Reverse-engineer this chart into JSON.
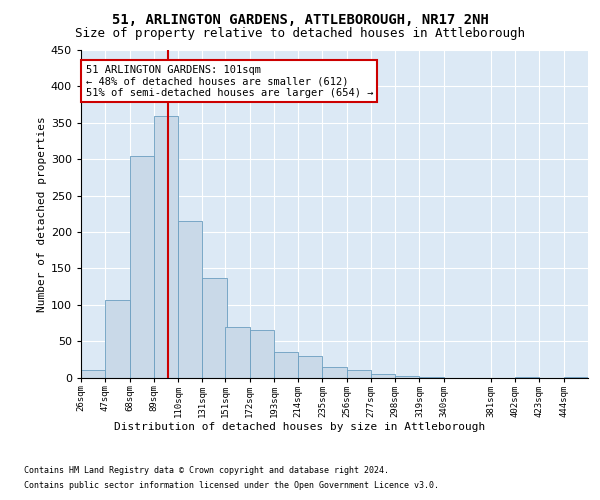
{
  "title": "51, ARLINGTON GARDENS, ATTLEBOROUGH, NR17 2NH",
  "subtitle": "Size of property relative to detached houses in Attleborough",
  "xlabel": "Distribution of detached houses by size in Attleborough",
  "ylabel": "Number of detached properties",
  "footer_line1": "Contains HM Land Registry data © Crown copyright and database right 2024.",
  "footer_line2": "Contains public sector information licensed under the Open Government Licence v3.0.",
  "annotation_title": "51 ARLINGTON GARDENS: 101sqm",
  "annotation_line2": "← 48% of detached houses are smaller (612)",
  "annotation_line3": "51% of semi-detached houses are larger (654) →",
  "subject_size": 101,
  "bins": [
    26,
    47,
    68,
    89,
    110,
    131,
    151,
    172,
    193,
    214,
    235,
    256,
    277,
    298,
    319,
    340,
    381,
    402,
    423,
    444
  ],
  "counts": [
    10,
    107,
    305,
    360,
    215,
    137,
    70,
    65,
    35,
    30,
    15,
    10,
    5,
    2,
    1,
    0,
    0,
    1,
    0,
    1
  ],
  "bar_color": "#c9d9e8",
  "bar_edge_color": "#6a9ec0",
  "line_color": "#cc0000",
  "bg_color": "#dce9f5",
  "annotation_box_color": "#ffffff",
  "annotation_box_edge": "#cc0000",
  "ylim": [
    0,
    450
  ],
  "yticks": [
    0,
    50,
    100,
    150,
    200,
    250,
    300,
    350,
    400,
    450
  ],
  "title_fontsize": 10,
  "subtitle_fontsize": 9,
  "ylabel_fontsize": 8,
  "xtick_fontsize": 6.5,
  "ytick_fontsize": 8,
  "annotation_fontsize": 7.5,
  "xlabel_fontsize": 8,
  "footer_fontsize": 6
}
